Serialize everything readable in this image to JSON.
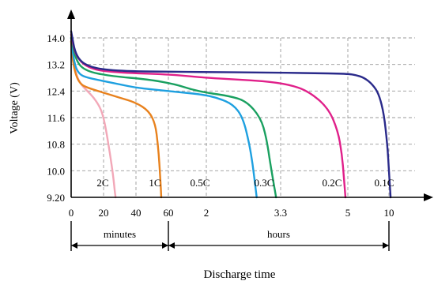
{
  "chart_data": {
    "type": "line",
    "title": "",
    "xlabel": "Discharge time",
    "ylabel": "Voltage (V)",
    "ylim": [
      9.2,
      14.0
    ],
    "grid": true,
    "y_ticks": [
      "14.0",
      "13.2",
      "12.4",
      "11.6",
      "10.8",
      "10.0",
      "9.20"
    ],
    "x_ticks": [
      {
        "label": "0",
        "unit": "min"
      },
      {
        "label": "20",
        "unit": "min"
      },
      {
        "label": "40",
        "unit": "min"
      },
      {
        "label": "60",
        "unit": "min"
      },
      {
        "label": "2",
        "unit": "h"
      },
      {
        "label": "3.3",
        "unit": "h"
      },
      {
        "label": "5",
        "unit": "h"
      },
      {
        "label": "10",
        "unit": "h"
      }
    ],
    "segments": [
      {
        "label": "minutes",
        "range": [
          "0",
          "60"
        ]
      },
      {
        "label": "hours",
        "range": [
          "60",
          "10"
        ]
      }
    ],
    "series": [
      {
        "name": "2C",
        "color": "#f2a8b8",
        "x": [
          0,
          1,
          3,
          6,
          10,
          14,
          18,
          20,
          22,
          24,
          25.5,
          26.5,
          27,
          27.4
        ],
        "y": [
          13.9,
          13.4,
          12.9,
          12.6,
          12.4,
          12.2,
          11.9,
          11.6,
          11.1,
          10.5,
          10.0,
          9.6,
          9.35,
          9.2
        ]
      },
      {
        "name": "1C",
        "color": "#e8821e",
        "x": [
          0,
          1,
          3,
          6,
          10,
          20,
          30,
          40,
          48,
          52,
          53.5,
          54.5,
          55.2,
          55.6
        ],
        "y": [
          13.9,
          13.3,
          12.85,
          12.6,
          12.5,
          12.35,
          12.2,
          12.05,
          11.8,
          11.4,
          10.8,
          10.2,
          9.6,
          9.2
        ]
      },
      {
        "name": "0.5C",
        "color": "#1ea0e0",
        "x": [
          0,
          2,
          5,
          10,
          20,
          30,
          40,
          50,
          60,
          70,
          80,
          90,
          100,
          106,
          110,
          112,
          113.5,
          114.5
        ],
        "y": [
          14.0,
          13.2,
          12.9,
          12.8,
          12.7,
          12.6,
          12.5,
          12.45,
          12.4,
          12.35,
          12.3,
          12.2,
          12.0,
          11.6,
          10.8,
          10.2,
          9.6,
          9.2
        ]
      },
      {
        "name": "0.3C",
        "color": "#1aa060",
        "x": [
          0,
          0.05,
          0.15,
          0.4,
          0.8,
          1.2,
          1.6,
          2.0,
          2.4,
          2.7,
          2.95,
          3.05,
          3.12,
          3.18,
          3.22
        ],
        "y": [
          14.0,
          13.3,
          13.0,
          12.85,
          12.75,
          12.6,
          12.45,
          12.35,
          12.25,
          12.1,
          11.6,
          11.0,
          10.2,
          9.6,
          9.2
        ]
      },
      {
        "name": "0.2C",
        "color": "#e0208a",
        "x": [
          0,
          0.05,
          0.2,
          0.5,
          1.0,
          1.5,
          2.0,
          2.5,
          3.0,
          3.5,
          4.0,
          4.5,
          4.75,
          4.85,
          4.9,
          4.94
        ],
        "y": [
          14.1,
          13.4,
          13.05,
          12.95,
          12.9,
          12.85,
          12.8,
          12.75,
          12.7,
          12.6,
          12.4,
          11.9,
          11.2,
          10.5,
          9.8,
          9.2
        ]
      },
      {
        "name": "0.1C",
        "color": "#2a2a8a",
        "x": [
          0,
          0.05,
          0.2,
          0.5,
          1.0,
          2.0,
          3.0,
          4.0,
          5.0,
          6.0,
          7.0,
          8.0,
          8.8,
          9.4,
          9.8,
          10.0,
          10.1,
          10.2
        ],
        "y": [
          14.2,
          13.4,
          13.1,
          13.0,
          12.98,
          12.97,
          12.96,
          12.94,
          12.92,
          12.88,
          12.8,
          12.6,
          12.3,
          11.7,
          10.8,
          10.0,
          9.6,
          9.2
        ]
      }
    ]
  }
}
